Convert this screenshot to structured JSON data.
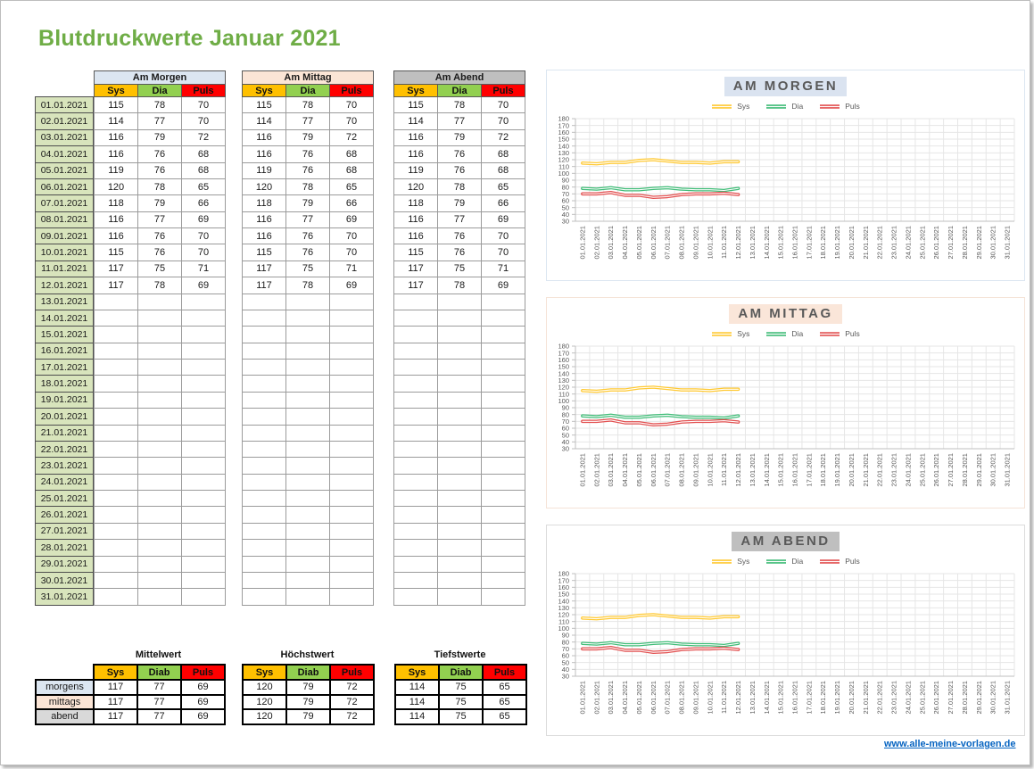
{
  "title": "Blutdruckwerte Januar 2021",
  "colors": {
    "title_green": "#6fad46",
    "header_sys": "#ffc000",
    "header_dia": "#92d050",
    "header_puls": "#ff0000",
    "date_cell_bg": "#d8e4bc",
    "morgen_accent": "#dce6f1",
    "mittag_accent": "#fbe5d6",
    "abend_accent": "#bfbfbf",
    "abend_label_bg": "#d9d9d9",
    "line_sys": "#ffc933",
    "line_dia": "#3fbc77",
    "line_puls": "#e25050",
    "axis_text": "#595959",
    "link_blue": "#0563c1"
  },
  "dates": [
    "01.01.2021",
    "02.01.2021",
    "03.01.2021",
    "04.01.2021",
    "05.01.2021",
    "06.01.2021",
    "07.01.2021",
    "08.01.2021",
    "09.01.2021",
    "10.01.2021",
    "11.01.2021",
    "12.01.2021",
    "13.01.2021",
    "14.01.2021",
    "15.01.2021",
    "16.01.2021",
    "17.01.2021",
    "18.01.2021",
    "19.01.2021",
    "20.01.2021",
    "21.01.2021",
    "22.01.2021",
    "23.01.2021",
    "24.01.2021",
    "25.01.2021",
    "26.01.2021",
    "27.01.2021",
    "28.01.2021",
    "29.01.2021",
    "30.01.2021",
    "31.01.2021"
  ],
  "main_tables": {
    "sections": [
      {
        "id": "morgen",
        "title": "Am Morgen",
        "title_bg": "#dce6f1",
        "columns": [
          "Sys",
          "Dia",
          "Puls"
        ],
        "sys": [
          115,
          114,
          116,
          116,
          119,
          120,
          118,
          116,
          116,
          115,
          117,
          117
        ],
        "dia": [
          78,
          77,
          79,
          76,
          76,
          78,
          79,
          77,
          76,
          76,
          75,
          78
        ],
        "puls": [
          70,
          70,
          72,
          68,
          68,
          65,
          66,
          69,
          70,
          70,
          71,
          69
        ]
      },
      {
        "id": "mittag",
        "title": "Am Mittag",
        "title_bg": "#fbe5d6",
        "columns": [
          "Sys",
          "Dia",
          "Puls"
        ],
        "sys": [
          115,
          114,
          116,
          116,
          119,
          120,
          118,
          116,
          116,
          115,
          117,
          117
        ],
        "dia": [
          78,
          77,
          79,
          76,
          76,
          78,
          79,
          77,
          76,
          76,
          75,
          78
        ],
        "puls": [
          70,
          70,
          72,
          68,
          68,
          65,
          66,
          69,
          70,
          70,
          71,
          69
        ]
      },
      {
        "id": "abend",
        "title": "Am Abend",
        "title_bg": "#bfbfbf",
        "columns": [
          "Sys",
          "Dia",
          "Puls"
        ],
        "sys": [
          115,
          114,
          116,
          116,
          119,
          120,
          118,
          116,
          116,
          115,
          117,
          117
        ],
        "dia": [
          78,
          77,
          79,
          76,
          76,
          78,
          79,
          77,
          76,
          76,
          75,
          78
        ],
        "puls": [
          70,
          70,
          72,
          68,
          68,
          65,
          66,
          69,
          70,
          70,
          71,
          69
        ]
      }
    ]
  },
  "summary": {
    "row_labels": [
      "morgens",
      "mittags",
      "abend"
    ],
    "row_label_bg": [
      "#dce6f1",
      "#fbe5d6",
      "#d9d9d9"
    ],
    "tables": [
      {
        "title": "Mittelwert",
        "columns": [
          "Sys",
          "Diab",
          "Puls"
        ],
        "has_row_labels": true,
        "rows": [
          [
            117,
            77,
            69
          ],
          [
            117,
            77,
            69
          ],
          [
            117,
            77,
            69
          ]
        ]
      },
      {
        "title": "Höchstwert",
        "columns": [
          "Sys",
          "Diab",
          "Puls"
        ],
        "has_row_labels": false,
        "rows": [
          [
            120,
            79,
            72
          ],
          [
            120,
            79,
            72
          ],
          [
            120,
            79,
            72
          ]
        ]
      },
      {
        "title": "Tiefstwerte",
        "columns": [
          "Sys",
          "Diab",
          "Puls"
        ],
        "has_row_labels": false,
        "rows": [
          [
            114,
            75,
            65
          ],
          [
            114,
            75,
            65
          ],
          [
            114,
            75,
            65
          ]
        ]
      }
    ]
  },
  "chart_data": [
    {
      "type": "line",
      "title": "AM MORGEN",
      "title_bg": "#dae3f0",
      "border_color": "#dce6f1",
      "legend_position": "top",
      "grid": true,
      "ylim": [
        30,
        180
      ],
      "ytick_step": 10,
      "yticks": [
        180,
        170,
        160,
        150,
        140,
        130,
        120,
        110,
        100,
        90,
        80,
        70,
        60,
        50,
        40,
        30
      ],
      "categories": [
        "01.01.2021",
        "02.01.2021",
        "03.01.2021",
        "04.01.2021",
        "05.01.2021",
        "06.01.2021",
        "07.01.2021",
        "08.01.2021",
        "09.01.2021",
        "10.01.2021",
        "11.01.2021",
        "12.01.2021",
        "13.01.2021",
        "14.01.2021",
        "15.01.2021",
        "16.01.2021",
        "17.01.2021",
        "18.01.2021",
        "19.01.2021",
        "20.01.2021",
        "21.01.2021",
        "22.01.2021",
        "23.01.2021",
        "24.01.2021",
        "25.01.2021",
        "26.01.2021",
        "27.01.2021",
        "28.01.2021",
        "29.01.2021",
        "30.01.2021",
        "31.01.2021"
      ],
      "series": [
        {
          "name": "Sys",
          "color": "#ffc933",
          "values": [
            115,
            114,
            116,
            116,
            119,
            120,
            118,
            116,
            116,
            115,
            117,
            117
          ]
        },
        {
          "name": "Dia",
          "color": "#3fbc77",
          "values": [
            78,
            77,
            79,
            76,
            76,
            78,
            79,
            77,
            76,
            76,
            75,
            78
          ]
        },
        {
          "name": "Puls",
          "color": "#e25050",
          "values": [
            70,
            70,
            72,
            68,
            68,
            65,
            66,
            69,
            70,
            70,
            71,
            69
          ]
        }
      ]
    },
    {
      "type": "line",
      "title": "AM MITTAG",
      "title_bg": "#fae6d9",
      "border_color": "#f5e3d7",
      "legend_position": "top",
      "grid": true,
      "ylim": [
        30,
        180
      ],
      "ytick_step": 10,
      "yticks": [
        180,
        170,
        160,
        150,
        140,
        130,
        120,
        110,
        100,
        90,
        80,
        70,
        60,
        50,
        40,
        30
      ],
      "categories": [
        "01.01.2021",
        "02.01.2021",
        "03.01.2021",
        "04.01.2021",
        "05.01.2021",
        "06.01.2021",
        "07.01.2021",
        "08.01.2021",
        "09.01.2021",
        "10.01.2021",
        "11.01.2021",
        "12.01.2021",
        "13.01.2021",
        "14.01.2021",
        "15.01.2021",
        "16.01.2021",
        "17.01.2021",
        "18.01.2021",
        "19.01.2021",
        "20.01.2021",
        "21.01.2021",
        "22.01.2021",
        "23.01.2021",
        "24.01.2021",
        "25.01.2021",
        "26.01.2021",
        "27.01.2021",
        "28.01.2021",
        "29.01.2021",
        "30.01.2021",
        "31.01.2021"
      ],
      "series": [
        {
          "name": "Sys",
          "color": "#ffc933",
          "values": [
            115,
            114,
            116,
            116,
            119,
            120,
            118,
            116,
            116,
            115,
            117,
            117
          ]
        },
        {
          "name": "Dia",
          "color": "#3fbc77",
          "values": [
            78,
            77,
            79,
            76,
            76,
            78,
            79,
            77,
            76,
            76,
            75,
            78
          ]
        },
        {
          "name": "Puls",
          "color": "#e25050",
          "values": [
            70,
            70,
            72,
            68,
            68,
            65,
            66,
            69,
            70,
            70,
            71,
            69
          ]
        }
      ]
    },
    {
      "type": "line",
      "title": "AM ABEND",
      "title_bg": "#bfbfbf",
      "border_color": "#dcdcdc",
      "legend_position": "top",
      "grid": true,
      "ylim": [
        30,
        180
      ],
      "ytick_step": 10,
      "yticks": [
        180,
        170,
        160,
        150,
        140,
        130,
        120,
        110,
        100,
        90,
        80,
        70,
        60,
        50,
        40,
        30
      ],
      "categories": [
        "01.01.2021",
        "02.01.2021",
        "03.01.2021",
        "04.01.2021",
        "05.01.2021",
        "06.01.2021",
        "07.01.2021",
        "08.01.2021",
        "09.01.2021",
        "10.01.2021",
        "11.01.2021",
        "12.01.2021",
        "13.01.2021",
        "14.01.2021",
        "15.01.2021",
        "16.01.2021",
        "17.01.2021",
        "18.01.2021",
        "19.01.2021",
        "20.01.2021",
        "21.01.2021",
        "22.01.2021",
        "23.01.2021",
        "24.01.2021",
        "25.01.2021",
        "26.01.2021",
        "27.01.2021",
        "28.01.2021",
        "29.01.2021",
        "30.01.2021",
        "31.01.2021"
      ],
      "series": [
        {
          "name": "Sys",
          "color": "#ffc933",
          "values": [
            115,
            114,
            116,
            116,
            119,
            120,
            118,
            116,
            116,
            115,
            117,
            117
          ]
        },
        {
          "name": "Dia",
          "color": "#3fbc77",
          "values": [
            78,
            77,
            79,
            76,
            76,
            78,
            79,
            77,
            76,
            76,
            75,
            78
          ]
        },
        {
          "name": "Puls",
          "color": "#e25050",
          "values": [
            70,
            70,
            72,
            68,
            68,
            65,
            66,
            69,
            70,
            70,
            71,
            69
          ]
        }
      ]
    }
  ],
  "footer": {
    "link": "www.alle-meine-vorlagen.de"
  }
}
